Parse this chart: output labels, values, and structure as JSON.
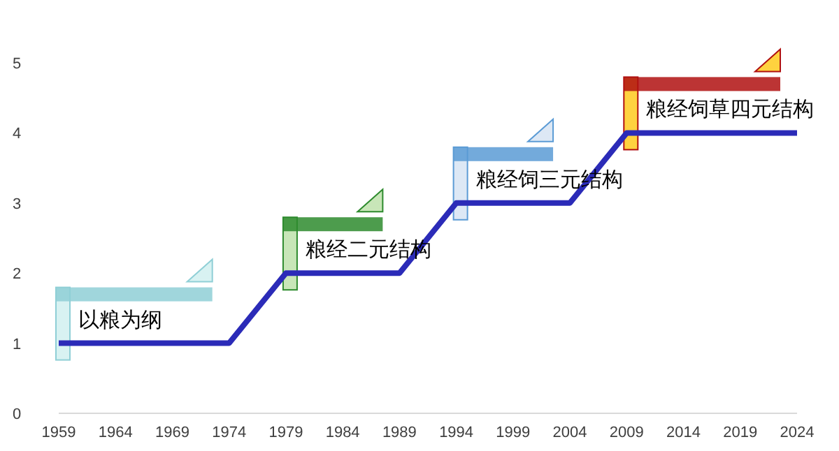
{
  "chart_data": {
    "type": "line",
    "x": [
      1959,
      1974,
      1979,
      1989,
      1994,
      2004,
      2009,
      2024
    ],
    "series": [
      {
        "color": "#2b2bb8",
        "values": [
          1,
          1,
          2,
          2,
          3,
          3,
          4,
          4
        ]
      }
    ],
    "xlim": [
      1959,
      2024
    ],
    "xticks": [
      1959,
      1964,
      1969,
      1974,
      1979,
      1984,
      1989,
      1994,
      1999,
      2004,
      2009,
      2014,
      2019,
      2024
    ],
    "ylim": [
      0,
      5
    ],
    "yticks": [
      0,
      1,
      2,
      3,
      4,
      5
    ],
    "annotations": [
      "以粮为纲",
      "粮经二元结构",
      "粮经饲三元结构",
      "粮经饲草四元结构"
    ],
    "grid": false,
    "marker": "none",
    "line_style": "solid"
  }
}
